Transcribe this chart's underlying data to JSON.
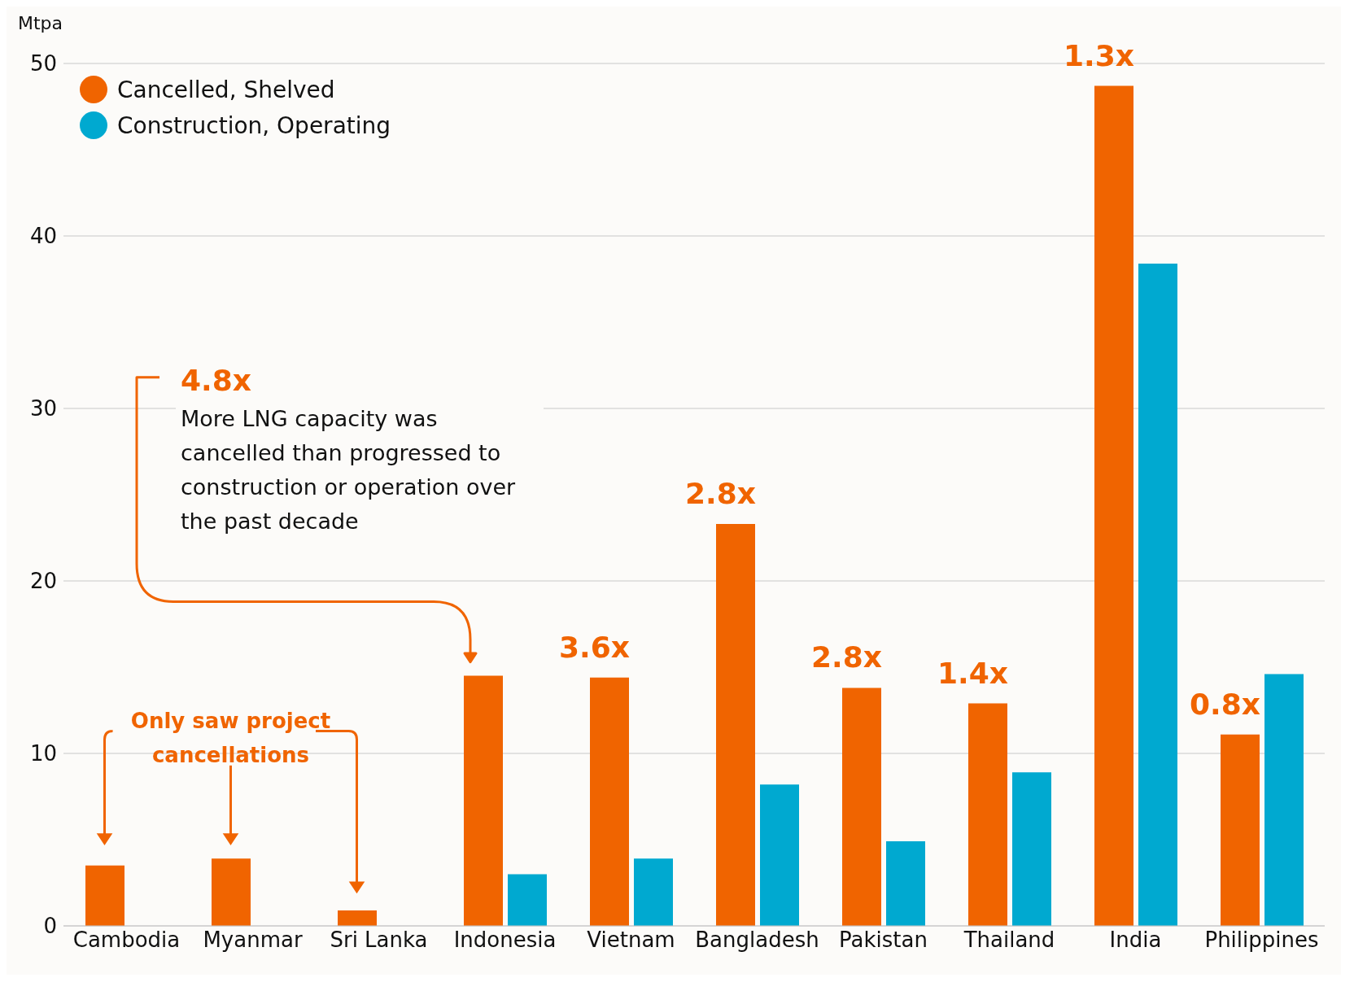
{
  "chart_data": {
    "type": "bar",
    "ylabel": "Mtpa",
    "categories": [
      "Cambodia",
      "Myanmar",
      "Sri Lanka",
      "Indonesia",
      "Vietnam",
      "Bangladesh",
      "Pakistan",
      "Thailand",
      "India",
      "Philippines"
    ],
    "series": [
      {
        "name": "Cancelled, Shelved",
        "color": "#f06400",
        "values": [
          3.5,
          3.9,
          0.9,
          14.5,
          14.4,
          23.3,
          13.8,
          12.9,
          48.7,
          11.1
        ]
      },
      {
        "name": "Construction, Operating",
        "color": "#00a9d0",
        "values": [
          null,
          null,
          null,
          3.0,
          3.9,
          8.2,
          4.9,
          8.9,
          38.4,
          14.6
        ]
      }
    ],
    "ylim": [
      0,
      50
    ],
    "yticks": [
      0,
      10,
      20,
      30,
      40,
      50
    ],
    "grid": "y",
    "legend": "top left",
    "annotations": [
      {
        "text": "4.8x"
      },
      {
        "text": "More LNG capacity was cancelled than progressed to construction or operation over the past decade"
      },
      {
        "text": "Only saw project cancellations"
      },
      {
        "text": "3.6x",
        "x": "Vietnam",
        "y": 14.4
      },
      {
        "text": "2.8x",
        "x": "Bangladesh",
        "y": 23.3
      },
      {
        "text": "2.8x",
        "x": "Pakistan",
        "y": 13.8
      },
      {
        "text": "1.4x",
        "x": "Thailand",
        "y": 12.9
      },
      {
        "text": "1.3x",
        "x": "India",
        "y": 48.7
      },
      {
        "text": "0.8x",
        "x": "Philippines",
        "y": 11.1
      }
    ]
  }
}
